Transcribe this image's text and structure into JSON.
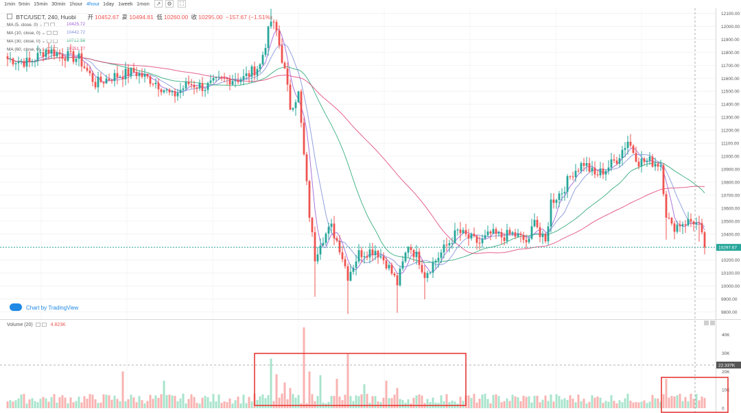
{
  "toolbar": {
    "intervals": [
      "1min",
      "5min",
      "15min",
      "30min",
      "1hour",
      "4hour",
      "1day",
      "1week",
      "1mon"
    ],
    "active_interval": "4hour",
    "icons": [
      "line-chart-icon",
      "settings-icon",
      "fullscreen-icon"
    ]
  },
  "legend": {
    "symbol": "BTC/USDT, 240, Huobi",
    "open_label": "开",
    "open": "10452.67",
    "high_label": "高",
    "high": "10494.81",
    "low_label": "低",
    "low": "10260.00",
    "close_label": "收",
    "close": "10295.00",
    "change": "−157.67 (−1.51%)"
  },
  "ma": [
    {
      "label": "MA (5, close, 0)",
      "value": "10425.72",
      "color": "#9c5bd6"
    },
    {
      "label": "MA (10, close, 0)",
      "value": "10442.72",
      "color": "#7f8fd8"
    },
    {
      "label": "MA (30, close, 0)",
      "value": "10712.58",
      "color": "#2aa876"
    },
    {
      "label": "MA (60, close, 0)",
      "value": "10751.77",
      "color": "#e0447a"
    }
  ],
  "volume_legend": {
    "label": "Volume (20)",
    "value": "4.823K"
  },
  "credit": "Chart by TradingView",
  "colors": {
    "up": "#26a69a",
    "down": "#ef5350",
    "vol_up": "#a8e4cc",
    "vol_down": "#f8b3b1"
  },
  "chart_data": [
    {
      "type": "candlestick",
      "title": "BTC/USDT, 240, Huobi",
      "y_ticks": [
        12100,
        12000,
        11900,
        11800,
        11700,
        11600,
        11500,
        11400,
        11300,
        11200,
        11100,
        11000,
        10900,
        10800,
        10700,
        10600,
        10500,
        10400,
        10300,
        10200,
        10100,
        10000,
        9900,
        9800
      ],
      "ylim": [
        9750,
        12150
      ],
      "last_price": "10297.67",
      "anchors": [
        [
          0,
          11750
        ],
        [
          8,
          11720
        ],
        [
          14,
          11820
        ],
        [
          20,
          11780
        ],
        [
          26,
          11750
        ],
        [
          32,
          11560
        ],
        [
          38,
          11610
        ],
        [
          46,
          11650
        ],
        [
          54,
          11570
        ],
        [
          60,
          11460
        ],
        [
          66,
          11560
        ],
        [
          72,
          11530
        ],
        [
          78,
          11590
        ],
        [
          86,
          11600
        ],
        [
          92,
          11700
        ],
        [
          96,
          12040
        ],
        [
          98,
          11960
        ],
        [
          101,
          11650
        ],
        [
          103,
          11380
        ],
        [
          106,
          11480
        ],
        [
          108,
          11000
        ],
        [
          110,
          10550
        ],
        [
          112,
          10220
        ],
        [
          114,
          10350
        ],
        [
          118,
          10450
        ],
        [
          121,
          10300
        ],
        [
          124,
          10080
        ],
        [
          128,
          10250
        ],
        [
          134,
          10280
        ],
        [
          138,
          10180
        ],
        [
          142,
          10020
        ],
        [
          146,
          10320
        ],
        [
          150,
          10200
        ],
        [
          152,
          10090
        ],
        [
          156,
          10200
        ],
        [
          160,
          10310
        ],
        [
          164,
          10420
        ],
        [
          168,
          10370
        ],
        [
          172,
          10330
        ],
        [
          176,
          10400
        ],
        [
          180,
          10380
        ],
        [
          184,
          10400
        ],
        [
          186,
          10380
        ],
        [
          190,
          10330
        ],
        [
          192,
          10550
        ],
        [
          194,
          10380
        ],
        [
          196,
          10330
        ],
        [
          198,
          10650
        ],
        [
          202,
          10730
        ],
        [
          206,
          10880
        ],
        [
          210,
          10950
        ],
        [
          214,
          10850
        ],
        [
          218,
          10900
        ],
        [
          222,
          10980
        ],
        [
          226,
          11120
        ],
        [
          230,
          10960
        ],
        [
          234,
          10960
        ],
        [
          238,
          10940
        ],
        [
          240,
          10560
        ],
        [
          242,
          10450
        ],
        [
          246,
          10490
        ],
        [
          250,
          10500
        ],
        [
          252,
          10450
        ],
        [
          254,
          10297
        ]
      ],
      "volume": {
        "y_ticks": [
          "40K",
          "30K",
          "20K",
          "10K",
          "0"
        ],
        "ylim": [
          0,
          44000
        ],
        "last_value": "22.337K",
        "spikes": [
          [
            42,
            20000
          ],
          [
            57,
            15000
          ],
          [
            96,
            27000
          ],
          [
            98,
            18500
          ],
          [
            101,
            14000
          ],
          [
            103,
            11000
          ],
          [
            108,
            44000
          ],
          [
            110,
            20000
          ],
          [
            114,
            18000
          ],
          [
            120,
            16000
          ],
          [
            124,
            29500
          ],
          [
            130,
            13000
          ],
          [
            138,
            15000
          ],
          [
            142,
            11000
          ],
          [
            240,
            16000
          ]
        ]
      }
    }
  ]
}
